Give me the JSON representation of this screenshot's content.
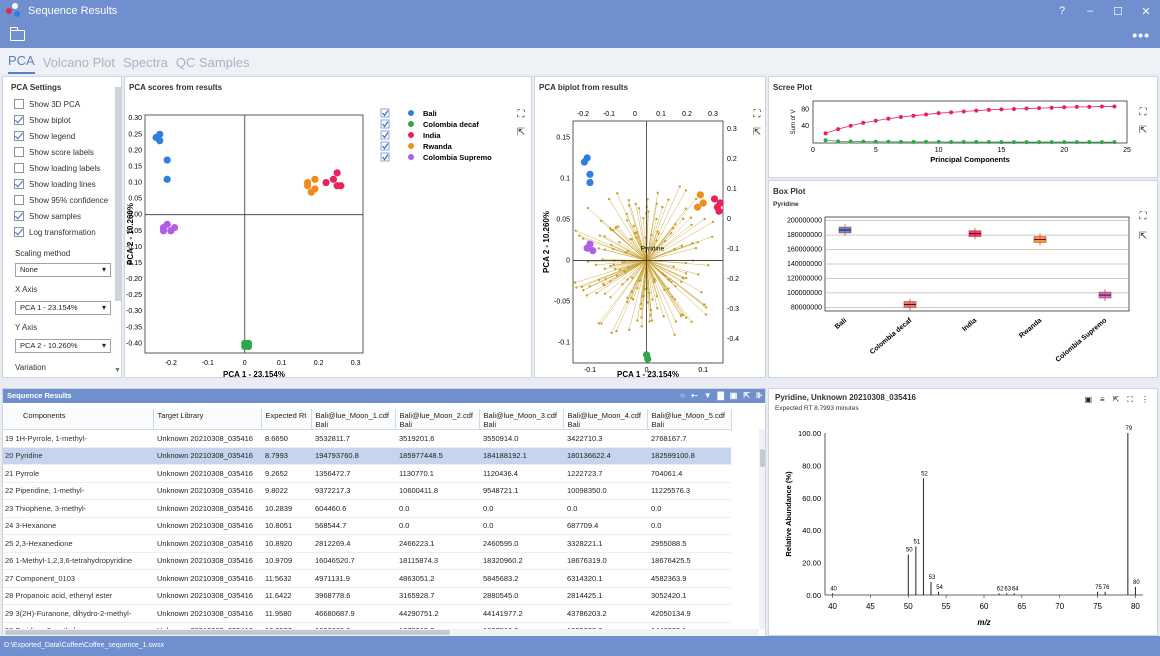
{
  "window": {
    "title": "Sequence Results"
  },
  "tabs": [
    "PCA",
    "Volcano Plot",
    "Spectra",
    "QC Samples"
  ],
  "settings": {
    "title": "PCA Settings",
    "checks": [
      {
        "label": "Show 3D PCA",
        "on": false
      },
      {
        "label": "Show biplot",
        "on": true
      },
      {
        "label": "Show legend",
        "on": true
      },
      {
        "label": "Show score labels",
        "on": false
      },
      {
        "label": "Show loading labels",
        "on": false
      },
      {
        "label": "Show loading lines",
        "on": true
      },
      {
        "label": "Show 95% confidence",
        "on": false
      },
      {
        "label": "Show samples",
        "on": true
      },
      {
        "label": "Log transformation",
        "on": true
      }
    ],
    "scaling_label": "Scaling method",
    "scaling_value": "None",
    "x_label": "X Axis",
    "x_value": "PCA 1 - 23.154%",
    "y_label": "Y Axis",
    "y_value": "PCA 2 - 10.260%",
    "variation_label": "Variation"
  },
  "colors": {
    "Bali": "#2f7fe0",
    "Colombia decaf": "#2ea84a",
    "India": "#e8235a",
    "Rwanda": "#f28a1c",
    "Colombia Supremo": "#b05ce6",
    "loading": "#c8a12e"
  },
  "pca_scores": {
    "title": "PCA scores from results",
    "xlabel": "PCA 1 - 23.154%",
    "ylabel": "PCA 2 - 10.260%",
    "xticks": [
      "-0.2",
      "-0.1",
      "0",
      "0.1",
      "0.2",
      "0.3"
    ],
    "yticks": [
      "0.30",
      "0.25",
      "0.20",
      "0.15",
      "0.10",
      "0.05",
      "0.00",
      "-0.05",
      "-0.10",
      "-0.15",
      "-0.20",
      "-0.25",
      "-0.30",
      "-0.35",
      "-0.40"
    ],
    "legend": [
      "Bali",
      "Colombia decaf",
      "India",
      "Rwanda",
      "Colombia Supremo"
    ],
    "points": {
      "Bali": [
        [
          -0.23,
          0.25
        ],
        [
          -0.24,
          0.24
        ],
        [
          -0.23,
          0.23
        ],
        [
          -0.21,
          0.17
        ],
        [
          -0.21,
          0.11
        ]
      ],
      "Colombia decaf": [
        [
          0.0,
          -0.4
        ],
        [
          0.01,
          -0.41
        ],
        [
          0.0,
          -0.41
        ],
        [
          0.01,
          -0.4
        ],
        [
          0.005,
          -0.405
        ]
      ],
      "India": [
        [
          0.25,
          0.13
        ],
        [
          0.24,
          0.11
        ],
        [
          0.26,
          0.09
        ],
        [
          0.22,
          0.1
        ],
        [
          0.25,
          0.09
        ]
      ],
      "Rwanda": [
        [
          0.17,
          0.1
        ],
        [
          0.19,
          0.11
        ],
        [
          0.19,
          0.08
        ],
        [
          0.18,
          0.07
        ],
        [
          0.17,
          0.09
        ]
      ],
      "Colombia Supremo": [
        [
          -0.21,
          -0.03
        ],
        [
          -0.22,
          -0.04
        ],
        [
          -0.2,
          -0.05
        ],
        [
          -0.19,
          -0.04
        ],
        [
          -0.22,
          -0.05
        ]
      ]
    }
  },
  "pca_biplot": {
    "title": "PCA biplot from results",
    "xlabel": "PCA 1 - 23.154%",
    "ylabel": "PCA 2 - 10.260%",
    "xticks": [
      "-0.1",
      "0",
      "0.1"
    ],
    "yticks": [
      "0.15",
      "0.1",
      "0.05",
      "0",
      "-0.05",
      "-0.1"
    ],
    "top_ticks": [
      "-0.2",
      "-0.1",
      "0",
      "0.1",
      "0.2",
      "0.3"
    ],
    "right_ticks": [
      "0.3",
      "0.2",
      "0.1",
      "0",
      "-0.1",
      "-0.2",
      "-0.3",
      "-0.4"
    ],
    "center_label": "Pyridine"
  },
  "scree": {
    "title": "Scree Plot",
    "xlabel": "Principal Components",
    "ylabel": "Sum of V",
    "xticks": [
      "0",
      "5",
      "10",
      "15",
      "20",
      "25"
    ],
    "yticks": [
      "80",
      "40"
    ],
    "cumulative": [
      23,
      33,
      41,
      48,
      53,
      58,
      62,
      65,
      68,
      71,
      73,
      75,
      77,
      79,
      80,
      81,
      82,
      83,
      84,
      85,
      86,
      86,
      87,
      87
    ],
    "individual": [
      23,
      10,
      8,
      7,
      5,
      5,
      4,
      3,
      3,
      3,
      2,
      2,
      2,
      2,
      1,
      1,
      1,
      1,
      1,
      1,
      1,
      0,
      1,
      0
    ]
  },
  "boxplot": {
    "title": "Box Plot",
    "subtitle": "Pyridine",
    "yticks": [
      "200000000",
      "180000000",
      "160000000",
      "140000000",
      "120000000",
      "100000000",
      "80000000"
    ],
    "categories": [
      "Bali",
      "Colombia decaf",
      "India",
      "Rwanda",
      "Colombia Supremo"
    ],
    "medians": [
      187000000,
      84000000,
      182000000,
      174000000,
      97000000
    ]
  },
  "table": {
    "header": "Sequence Results",
    "columns": [
      "Components",
      "Target Library",
      "Expected Rt",
      "Bali@lue_Moon_1.cdf\nBali",
      "Bali@lue_Moon_2.cdf\nBali",
      "Bali@lue_Moon_3.cdf\nBali",
      "Bali@lue_Moon_4.cdf\nBali",
      "Bali@lue_Moon_5.cdf\nBali"
    ],
    "rows": [
      [
        "19",
        "1H-Pyrrole, 1-methyl-",
        "Unknown 20210308_035416",
        "8.6650",
        "3532811.7",
        "3519201.6",
        "3550914.0",
        "3422710.3",
        "2768167.7"
      ],
      [
        "20",
        "Pyridine",
        "Unknown 20210308_035416",
        "8.7993",
        "194793760.8",
        "185977448.5",
        "184188192.1",
        "180136622.4",
        "182599100.8"
      ],
      [
        "21",
        "Pyrrole",
        "Unknown 20210308_035416",
        "9.2652",
        "1356472.7",
        "1130770.1",
        "1120436.4",
        "1222723.7",
        "704061.4"
      ],
      [
        "22",
        "Piperidine, 1-methyl-",
        "Unknown 20210308_035416",
        "9.8022",
        "9372217.3",
        "10600411.8",
        "9548721.1",
        "10098350.0",
        "11225576.3"
      ],
      [
        "23",
        "Thiophene, 3-methyl-",
        "Unknown 20210308_035416",
        "10.2839",
        "604460.6",
        "0.0",
        "0.0",
        "0.0",
        "0.0"
      ],
      [
        "24",
        "3-Hexanone",
        "Unknown 20210308_035416",
        "10.8051",
        "568544.7",
        "0.0",
        "0.0",
        "687709.4",
        "0.0"
      ],
      [
        "25",
        "2,3-Hexanedione",
        "Unknown 20210308_035416",
        "10.8920",
        "2812269.4",
        "2466223.1",
        "2460595.0",
        "3328221.1",
        "2955088.5"
      ],
      [
        "26",
        "1-Methyl-1,2,3,6-tetrahydropyridine",
        "Unknown 20210308_035416",
        "10.9709",
        "16046520.7",
        "18115874.3",
        "18320960.2",
        "18676319.0",
        "18676425.5"
      ],
      [
        "27",
        "Component_0103",
        "Unknown 20210308_035416",
        "11.5632",
        "4971131.9",
        "4863051.2",
        "5845683.2",
        "6314320.1",
        "4582363.9"
      ],
      [
        "28",
        "Propanoic acid, ethenyl ester",
        "Unknown 20210308_035416",
        "11.6422",
        "3968778.6",
        "3165928.7",
        "2880545.0",
        "2814425.1",
        "3052420.1"
      ],
      [
        "29",
        "3(2H)-Furanone, dihydro-2-methyl-",
        "Unknown 20210308_035416",
        "11.9580",
        "46680687.9",
        "44290751.2",
        "44141977.2",
        "43786203.2",
        "42050134.9"
      ],
      [
        "30",
        "Pyridine, 2-methyl-",
        "Unknown 20210308_035416",
        "12.2502",
        "1030665.9",
        "1878915.9",
        "1822510.3",
        "1699808.8",
        "1446328.1"
      ]
    ]
  },
  "spectrum": {
    "title": "Pyridine, Unknown 20210308_035416",
    "subtitle": "Expected RT 8.7993 minutes",
    "xlabel": "m/z",
    "ylabel": "Relative Abundance (%)",
    "xticks": [
      "40",
      "45",
      "50",
      "55",
      "60",
      "65",
      "70",
      "75",
      "80"
    ],
    "yticks": [
      "100.00",
      "80.00",
      "60.00",
      "40.00",
      "20.00",
      "0.00"
    ],
    "peaks": [
      {
        "mz": 40,
        "ab": 1,
        "label": "40"
      },
      {
        "mz": 50,
        "ab": 25,
        "label": "50"
      },
      {
        "mz": 51,
        "ab": 30,
        "label": "51"
      },
      {
        "mz": 52,
        "ab": 72,
        "label": "52"
      },
      {
        "mz": 53,
        "ab": 8,
        "label": "53"
      },
      {
        "mz": 54,
        "ab": 2,
        "label": "54"
      },
      {
        "mz": 62,
        "ab": 1,
        "label": "62"
      },
      {
        "mz": 63,
        "ab": 1,
        "label": "63"
      },
      {
        "mz": 64,
        "ab": 1,
        "label": "64"
      },
      {
        "mz": 75,
        "ab": 2,
        "label": "75"
      },
      {
        "mz": 76,
        "ab": 2,
        "label": "76"
      },
      {
        "mz": 79,
        "ab": 100,
        "label": "79"
      },
      {
        "mz": 80,
        "ab": 5,
        "label": "80"
      }
    ]
  },
  "status": {
    "path": "D:\\Exported_Data\\Coffee\\Coffee_sequence_1.swsx"
  }
}
